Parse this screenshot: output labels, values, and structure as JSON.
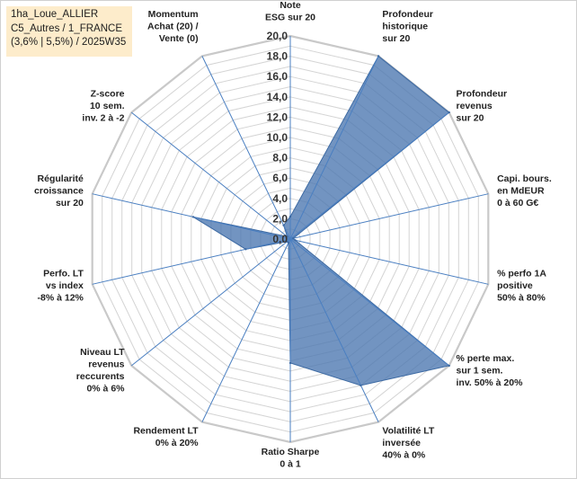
{
  "info_box": {
    "line1": "1ha_Loue_ALLIER",
    "line2": "C5_Autres / 1_FRANCE",
    "line3": "(3,6% | 5,5%) / 2025W35"
  },
  "chart_data": {
    "type": "radar",
    "rmax": 20,
    "tick_step": 2,
    "tick_labels": [
      "0,0",
      "2,0",
      "4,0",
      "6,0",
      "8,0",
      "10,0",
      "12,0",
      "14,0",
      "16,0",
      "18,0",
      "20,0"
    ],
    "gridline_count": 20,
    "series_color": "#4a76b0",
    "axes": [
      {
        "label": [
          "Note",
          "ESG sur 20"
        ],
        "value": 2.2
      },
      {
        "label": [
          "Profondeur",
          "historique",
          "sur 20"
        ],
        "value": 20
      },
      {
        "label": [
          "Profondeur",
          "revenus",
          "sur 20"
        ],
        "value": 20
      },
      {
        "label": [
          "Capi. bours.",
          "en MdEUR",
          "0 à 60 G€"
        ],
        "value": 0.3
      },
      {
        "label": [
          "% perfo 1A",
          "positive",
          "50% à 80%"
        ],
        "value": 0.5
      },
      {
        "label": [
          "% perte max.",
          "sur 1 sem.",
          "inv. 50% à 20%"
        ],
        "value": 20
      },
      {
        "label": [
          "Volatilité LT",
          "inversée",
          "40% à 0%"
        ],
        "value": 16
      },
      {
        "label": [
          "Ratio Sharpe",
          "0 à 1"
        ],
        "value": 12.2
      },
      {
        "label": [
          "Rendement LT",
          "0% à 20%"
        ],
        "value": 0.4
      },
      {
        "label": [
          "Niveau LT",
          "revenus",
          "reccurents",
          "0% à 6%"
        ],
        "value": 0.4
      },
      {
        "label": [
          "Perfo. LT",
          "vs index",
          "-8% à 12%"
        ],
        "value": 4.5
      },
      {
        "label": [
          "Régularité",
          "croissance",
          "sur 20"
        ],
        "value": 9.8
      },
      {
        "label": [
          "Z-score",
          "10 sem.",
          "inv. 2 à -2"
        ],
        "value": 0.4
      },
      {
        "label": [
          "Momentum",
          "Achat (20) /",
          "Vente (0)"
        ],
        "value": 1.5
      }
    ]
  }
}
